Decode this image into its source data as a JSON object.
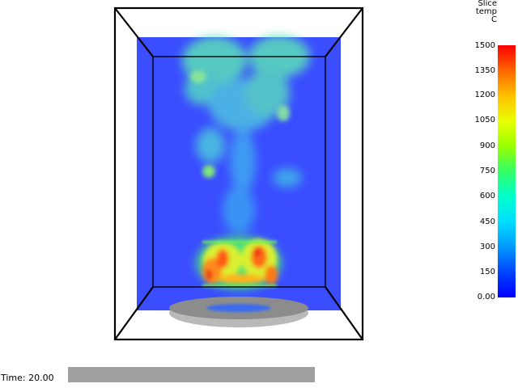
{
  "colorbar": {
    "title_lines": [
      "Slice",
      "temp",
      "C"
    ],
    "ticks": [
      "1500",
      "1350",
      "1200",
      "1050",
      "900",
      "750",
      "600",
      "450",
      "300",
      "150",
      "0.00"
    ],
    "min_color": "#0000ff",
    "max_color": "#ff0000"
  },
  "timebar": {
    "label": "Time: 20.00"
  },
  "scene": {
    "background_slice_color": "#3a4dff",
    "burner_color": "#8c8c8c",
    "box_edge_color": "#000000"
  }
}
